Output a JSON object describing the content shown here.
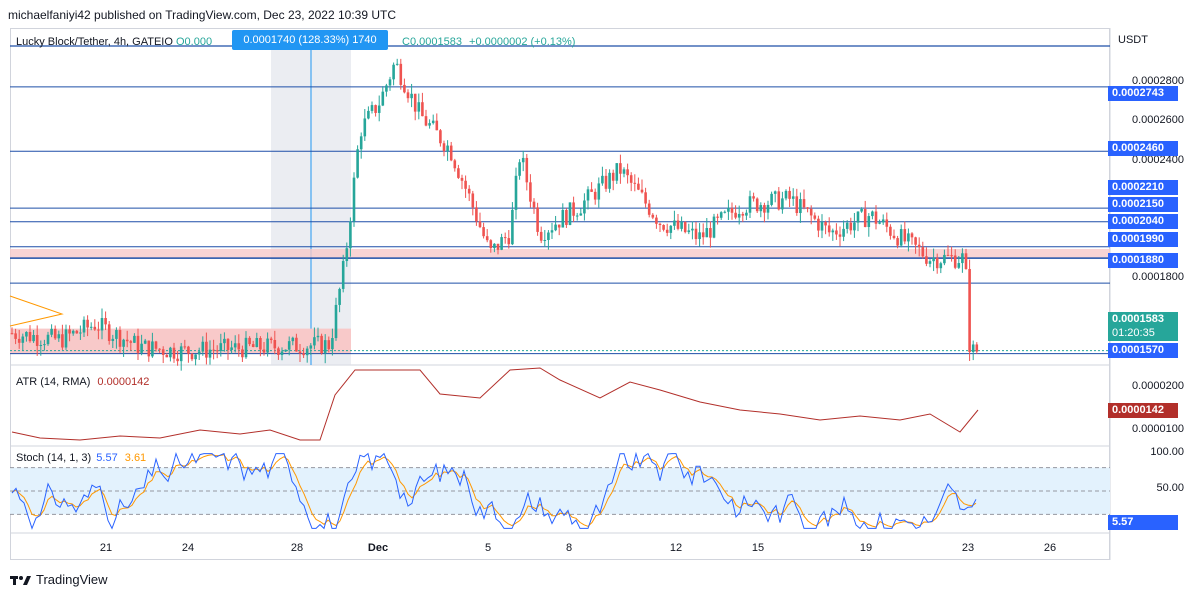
{
  "header": {
    "attribution": "michaelfaniyi42 published on TradingView.com, Dec 23, 2022 10:39 UTC"
  },
  "symbol": {
    "title": "Lucky Block/Tether, 4h, GATEIO",
    "ohlc_prefix": "O0.000",
    "close_text": "C0.0001583",
    "change_text": "+0.0000002 (+0.13%)",
    "selection_label": "0.0001740 (128.33%) 1740",
    "currency": "USDT"
  },
  "colors": {
    "up": "#26a69a",
    "down": "#ef5350",
    "hline": "#1e4fa8",
    "zone_fill": "#f8c9c9",
    "atr_line": "#b22f2a",
    "stoch_k": "#2962ff",
    "stoch_d": "#ff9800",
    "stoch_band": "#e3f2fd"
  },
  "price_axis": {
    "ticks": [
      "0.0002800",
      "0.0002600",
      "0.0002400",
      "0.0001800"
    ],
    "level_badges": [
      "0.0002743",
      "0.0002460",
      "0.0002210",
      "0.0002150",
      "0.0002040",
      "0.0001990",
      "0.0001880",
      "0.0001570"
    ],
    "last_price": "0.0001583",
    "countdown": "01:20:35"
  },
  "atr": {
    "label": "ATR (14, RMA)",
    "value": "0.0000142",
    "ticks": [
      "0.0000200",
      "0.0000100"
    ],
    "badge": "0.0000142"
  },
  "stoch": {
    "label": "Stoch (14, 1, 3)",
    "k_value": "5.57",
    "d_value": "3.61",
    "ticks": [
      "100.00",
      "50.00"
    ],
    "badge": "5.57"
  },
  "x_axis": {
    "labels": [
      "21",
      "24",
      "28",
      "Dec",
      "5",
      "8",
      "12",
      "15",
      "19",
      "23",
      "26"
    ]
  },
  "footer": {
    "brand": "TradingView"
  },
  "chart_data": {
    "type": "candlestick",
    "symbol": "Lucky Block/Tether",
    "timeframe": "4h",
    "exchange": "GATEIO",
    "horizontal_levels": [
      0.0002743,
      0.000246,
      0.000221,
      0.000215,
      0.000204,
      0.000199,
      0.000188,
      0.0001583,
      0.000157
    ],
    "support_zone": [
      0.000157,
      0.000168
    ],
    "resistance_zone": [
      0.000199,
      0.000203
    ],
    "last_price": 0.0001583,
    "x_labels": [
      "21",
      "24",
      "28",
      "Dec",
      "5",
      "8",
      "12",
      "15",
      "19",
      "23",
      "26"
    ],
    "price_range": [
      0.000152,
      0.000293
    ],
    "indicators": {
      "atr": {
        "length": 14,
        "smoothing": "RMA",
        "value": 1.42e-05
      },
      "stochastic": {
        "k": 5.57,
        "d": 3.61,
        "bands": [
          80,
          20
        ]
      }
    }
  }
}
